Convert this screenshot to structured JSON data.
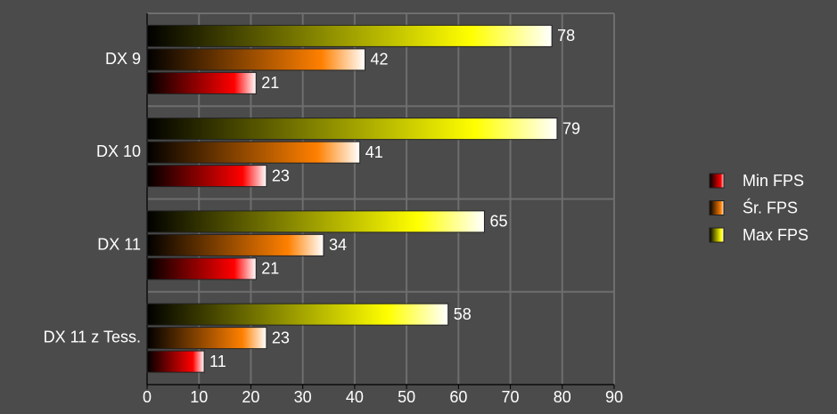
{
  "chart_data": {
    "type": "bar",
    "orientation": "horizontal",
    "categories": [
      "DX 9",
      "DX 10",
      "DX 11",
      "DX 11 z Tess."
    ],
    "series": [
      {
        "name": "Min FPS",
        "color": "#ff0000",
        "values": [
          21,
          23,
          21,
          11
        ]
      },
      {
        "name": "Śr. FPS",
        "color": "#ff8000",
        "values": [
          42,
          41,
          34,
          23
        ]
      },
      {
        "name": "Max FPS",
        "color": "#ffff00",
        "values": [
          78,
          79,
          65,
          58
        ]
      }
    ],
    "xlim": [
      0,
      90
    ],
    "xticks": [
      0,
      10,
      20,
      30,
      40,
      50,
      60,
      70,
      80,
      90
    ],
    "grid": true,
    "legend": "right"
  }
}
